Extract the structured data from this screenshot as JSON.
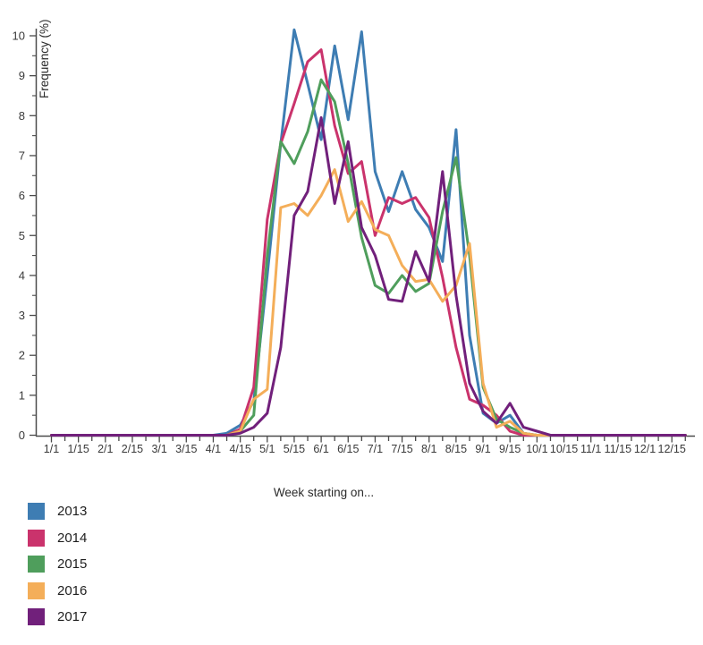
{
  "chart_data": {
    "type": "line",
    "title": "",
    "xlabel": "Week starting on...",
    "ylabel": "Frequency (%)",
    "ylim": [
      0,
      10
    ],
    "grid": false,
    "legend_position": "bottom-left",
    "y_ticks": [
      0,
      1,
      2,
      3,
      4,
      5,
      6,
      7,
      8,
      9,
      10
    ],
    "x_categories": [
      "1/1",
      "1/8",
      "1/15",
      "1/22",
      "2/1",
      "2/8",
      "2/15",
      "2/22",
      "3/1",
      "3/8",
      "3/15",
      "3/22",
      "4/1",
      "4/8",
      "4/15",
      "4/22",
      "5/1",
      "5/8",
      "5/15",
      "5/22",
      "6/1",
      "6/8",
      "6/15",
      "6/22",
      "7/1",
      "7/8",
      "7/15",
      "7/22",
      "8/1",
      "8/8",
      "8/15",
      "8/22",
      "9/1",
      "9/8",
      "9/15",
      "9/22",
      "10/1",
      "10/8",
      "10/15",
      "10/22",
      "11/1",
      "11/8",
      "11/15",
      "11/22",
      "12/1",
      "12/8",
      "12/15",
      "12/22"
    ],
    "x_labeled_ticks": [
      "1/1",
      "1/15",
      "2/1",
      "2/15",
      "3/1",
      "3/15",
      "4/1",
      "4/15",
      "5/1",
      "5/15",
      "6/1",
      "6/15",
      "7/1",
      "7/15",
      "8/1",
      "8/15",
      "9/1",
      "9/15",
      "10/1",
      "10/15",
      "11/1",
      "11/15",
      "12/1",
      "12/15"
    ],
    "series": [
      {
        "name": "2013",
        "color": "#3e7db3",
        "values": [
          0,
          0,
          0,
          0,
          0,
          0,
          0,
          0,
          0,
          0,
          0,
          0,
          0,
          0.05,
          0.25,
          0.85,
          4.0,
          7.3,
          10.15,
          8.8,
          7.4,
          9.75,
          7.9,
          10.1,
          6.6,
          5.6,
          6.6,
          5.65,
          5.2,
          4.35,
          7.65,
          2.5,
          0.55,
          0.3,
          0.5,
          0.05,
          0,
          0,
          0,
          0,
          0,
          0,
          0,
          0,
          0,
          0,
          0,
          0
        ]
      },
      {
        "name": "2014",
        "color": "#ca336c",
        "values": [
          0,
          0,
          0,
          0,
          0,
          0,
          0,
          0,
          0,
          0,
          0,
          0,
          0,
          0,
          0.15,
          1.2,
          5.4,
          7.3,
          8.3,
          9.35,
          9.65,
          7.75,
          6.55,
          6.85,
          5.0,
          5.95,
          5.8,
          5.95,
          5.45,
          3.95,
          2.2,
          0.9,
          0.75,
          0.5,
          0.1,
          0,
          0,
          0,
          0,
          0,
          0,
          0,
          0,
          0,
          0,
          0,
          0,
          0
        ]
      },
      {
        "name": "2015",
        "color": "#4f9e5c",
        "values": [
          0,
          0,
          0,
          0,
          0,
          0,
          0,
          0,
          0,
          0,
          0,
          0,
          0,
          0,
          0.1,
          0.5,
          4.5,
          7.35,
          6.8,
          7.6,
          8.9,
          8.35,
          6.8,
          4.95,
          3.75,
          3.55,
          4.0,
          3.6,
          3.8,
          5.6,
          6.95,
          4.5,
          1.2,
          0.4,
          0.2,
          0.05,
          0,
          0,
          0,
          0,
          0,
          0,
          0,
          0,
          0,
          0,
          0,
          0
        ]
      },
      {
        "name": "2016",
        "color": "#f4ae59",
        "values": [
          0,
          0,
          0,
          0,
          0,
          0,
          0,
          0,
          0,
          0,
          0,
          0,
          0,
          0,
          0.1,
          0.9,
          1.15,
          5.7,
          5.8,
          5.5,
          6.0,
          6.65,
          5.35,
          5.85,
          5.15,
          5.0,
          4.25,
          3.85,
          3.9,
          3.35,
          3.75,
          4.8,
          1.3,
          0.2,
          0.35,
          0.05,
          0,
          0,
          0,
          0,
          0,
          0,
          0,
          0,
          0,
          0,
          0,
          0
        ]
      },
      {
        "name": "2017",
        "color": "#71207b",
        "values": [
          0,
          0,
          0,
          0,
          0,
          0,
          0,
          0,
          0,
          0,
          0,
          0,
          0,
          0,
          0.05,
          0.2,
          0.55,
          2.2,
          5.5,
          6.1,
          7.95,
          5.8,
          7.35,
          5.2,
          4.5,
          3.4,
          3.35,
          4.6,
          3.85,
          6.6,
          3.5,
          1.3,
          0.6,
          0.3,
          0.8,
          0.2,
          0.1,
          0,
          0,
          0,
          0,
          0,
          0,
          0,
          0,
          0,
          0,
          0
        ]
      }
    ]
  },
  "legend": {
    "items": [
      {
        "label": "2013",
        "color": "#3e7db3"
      },
      {
        "label": "2014",
        "color": "#ca336c"
      },
      {
        "label": "2015",
        "color": "#4f9e5c"
      },
      {
        "label": "2016",
        "color": "#f4ae59"
      },
      {
        "label": "2017",
        "color": "#71207b"
      }
    ]
  },
  "axis_style": {
    "line_color": "#4a4a4a",
    "tick_label_color": "#3a3a3a"
  }
}
